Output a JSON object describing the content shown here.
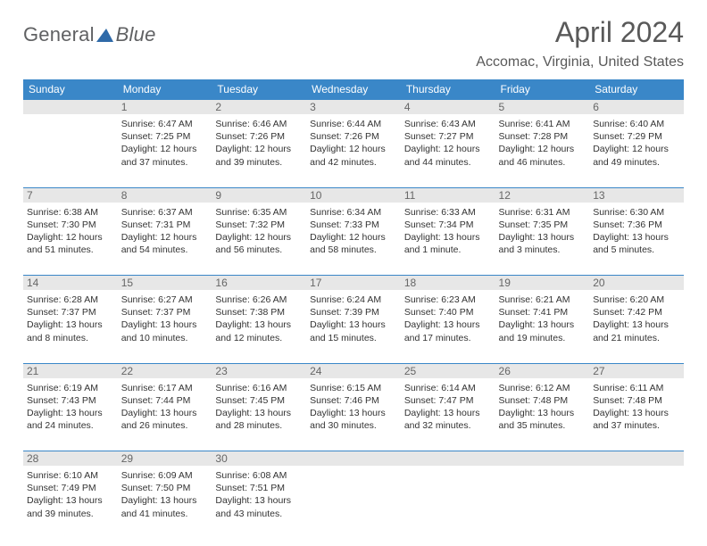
{
  "logo": {
    "word1": "General",
    "word2": "Blue"
  },
  "title": "April 2024",
  "location": "Accomac, Virginia, United States",
  "colors": {
    "header_bg": "#3a87c8",
    "header_text": "#ffffff",
    "daynum_bg": "#e7e7e7",
    "daynum_text": "#666666",
    "rule": "#3a87c8",
    "body_text": "#333333",
    "title_text": "#595959"
  },
  "day_headers": [
    "Sunday",
    "Monday",
    "Tuesday",
    "Wednesday",
    "Thursday",
    "Friday",
    "Saturday"
  ],
  "weeks": [
    {
      "nums": [
        "",
        "1",
        "2",
        "3",
        "4",
        "5",
        "6"
      ],
      "cells": [
        null,
        {
          "sunrise": "Sunrise: 6:47 AM",
          "sunset": "Sunset: 7:25 PM",
          "daylight": "Daylight: 12 hours and 37 minutes."
        },
        {
          "sunrise": "Sunrise: 6:46 AM",
          "sunset": "Sunset: 7:26 PM",
          "daylight": "Daylight: 12 hours and 39 minutes."
        },
        {
          "sunrise": "Sunrise: 6:44 AM",
          "sunset": "Sunset: 7:26 PM",
          "daylight": "Daylight: 12 hours and 42 minutes."
        },
        {
          "sunrise": "Sunrise: 6:43 AM",
          "sunset": "Sunset: 7:27 PM",
          "daylight": "Daylight: 12 hours and 44 minutes."
        },
        {
          "sunrise": "Sunrise: 6:41 AM",
          "sunset": "Sunset: 7:28 PM",
          "daylight": "Daylight: 12 hours and 46 minutes."
        },
        {
          "sunrise": "Sunrise: 6:40 AM",
          "sunset": "Sunset: 7:29 PM",
          "daylight": "Daylight: 12 hours and 49 minutes."
        }
      ]
    },
    {
      "nums": [
        "7",
        "8",
        "9",
        "10",
        "11",
        "12",
        "13"
      ],
      "cells": [
        {
          "sunrise": "Sunrise: 6:38 AM",
          "sunset": "Sunset: 7:30 PM",
          "daylight": "Daylight: 12 hours and 51 minutes."
        },
        {
          "sunrise": "Sunrise: 6:37 AM",
          "sunset": "Sunset: 7:31 PM",
          "daylight": "Daylight: 12 hours and 54 minutes."
        },
        {
          "sunrise": "Sunrise: 6:35 AM",
          "sunset": "Sunset: 7:32 PM",
          "daylight": "Daylight: 12 hours and 56 minutes."
        },
        {
          "sunrise": "Sunrise: 6:34 AM",
          "sunset": "Sunset: 7:33 PM",
          "daylight": "Daylight: 12 hours and 58 minutes."
        },
        {
          "sunrise": "Sunrise: 6:33 AM",
          "sunset": "Sunset: 7:34 PM",
          "daylight": "Daylight: 13 hours and 1 minute."
        },
        {
          "sunrise": "Sunrise: 6:31 AM",
          "sunset": "Sunset: 7:35 PM",
          "daylight": "Daylight: 13 hours and 3 minutes."
        },
        {
          "sunrise": "Sunrise: 6:30 AM",
          "sunset": "Sunset: 7:36 PM",
          "daylight": "Daylight: 13 hours and 5 minutes."
        }
      ]
    },
    {
      "nums": [
        "14",
        "15",
        "16",
        "17",
        "18",
        "19",
        "20"
      ],
      "cells": [
        {
          "sunrise": "Sunrise: 6:28 AM",
          "sunset": "Sunset: 7:37 PM",
          "daylight": "Daylight: 13 hours and 8 minutes."
        },
        {
          "sunrise": "Sunrise: 6:27 AM",
          "sunset": "Sunset: 7:37 PM",
          "daylight": "Daylight: 13 hours and 10 minutes."
        },
        {
          "sunrise": "Sunrise: 6:26 AM",
          "sunset": "Sunset: 7:38 PM",
          "daylight": "Daylight: 13 hours and 12 minutes."
        },
        {
          "sunrise": "Sunrise: 6:24 AM",
          "sunset": "Sunset: 7:39 PM",
          "daylight": "Daylight: 13 hours and 15 minutes."
        },
        {
          "sunrise": "Sunrise: 6:23 AM",
          "sunset": "Sunset: 7:40 PM",
          "daylight": "Daylight: 13 hours and 17 minutes."
        },
        {
          "sunrise": "Sunrise: 6:21 AM",
          "sunset": "Sunset: 7:41 PM",
          "daylight": "Daylight: 13 hours and 19 minutes."
        },
        {
          "sunrise": "Sunrise: 6:20 AM",
          "sunset": "Sunset: 7:42 PM",
          "daylight": "Daylight: 13 hours and 21 minutes."
        }
      ]
    },
    {
      "nums": [
        "21",
        "22",
        "23",
        "24",
        "25",
        "26",
        "27"
      ],
      "cells": [
        {
          "sunrise": "Sunrise: 6:19 AM",
          "sunset": "Sunset: 7:43 PM",
          "daylight": "Daylight: 13 hours and 24 minutes."
        },
        {
          "sunrise": "Sunrise: 6:17 AM",
          "sunset": "Sunset: 7:44 PM",
          "daylight": "Daylight: 13 hours and 26 minutes."
        },
        {
          "sunrise": "Sunrise: 6:16 AM",
          "sunset": "Sunset: 7:45 PM",
          "daylight": "Daylight: 13 hours and 28 minutes."
        },
        {
          "sunrise": "Sunrise: 6:15 AM",
          "sunset": "Sunset: 7:46 PM",
          "daylight": "Daylight: 13 hours and 30 minutes."
        },
        {
          "sunrise": "Sunrise: 6:14 AM",
          "sunset": "Sunset: 7:47 PM",
          "daylight": "Daylight: 13 hours and 32 minutes."
        },
        {
          "sunrise": "Sunrise: 6:12 AM",
          "sunset": "Sunset: 7:48 PM",
          "daylight": "Daylight: 13 hours and 35 minutes."
        },
        {
          "sunrise": "Sunrise: 6:11 AM",
          "sunset": "Sunset: 7:48 PM",
          "daylight": "Daylight: 13 hours and 37 minutes."
        }
      ]
    },
    {
      "nums": [
        "28",
        "29",
        "30",
        "",
        "",
        "",
        ""
      ],
      "cells": [
        {
          "sunrise": "Sunrise: 6:10 AM",
          "sunset": "Sunset: 7:49 PM",
          "daylight": "Daylight: 13 hours and 39 minutes."
        },
        {
          "sunrise": "Sunrise: 6:09 AM",
          "sunset": "Sunset: 7:50 PM",
          "daylight": "Daylight: 13 hours and 41 minutes."
        },
        {
          "sunrise": "Sunrise: 6:08 AM",
          "sunset": "Sunset: 7:51 PM",
          "daylight": "Daylight: 13 hours and 43 minutes."
        },
        null,
        null,
        null,
        null
      ]
    }
  ]
}
